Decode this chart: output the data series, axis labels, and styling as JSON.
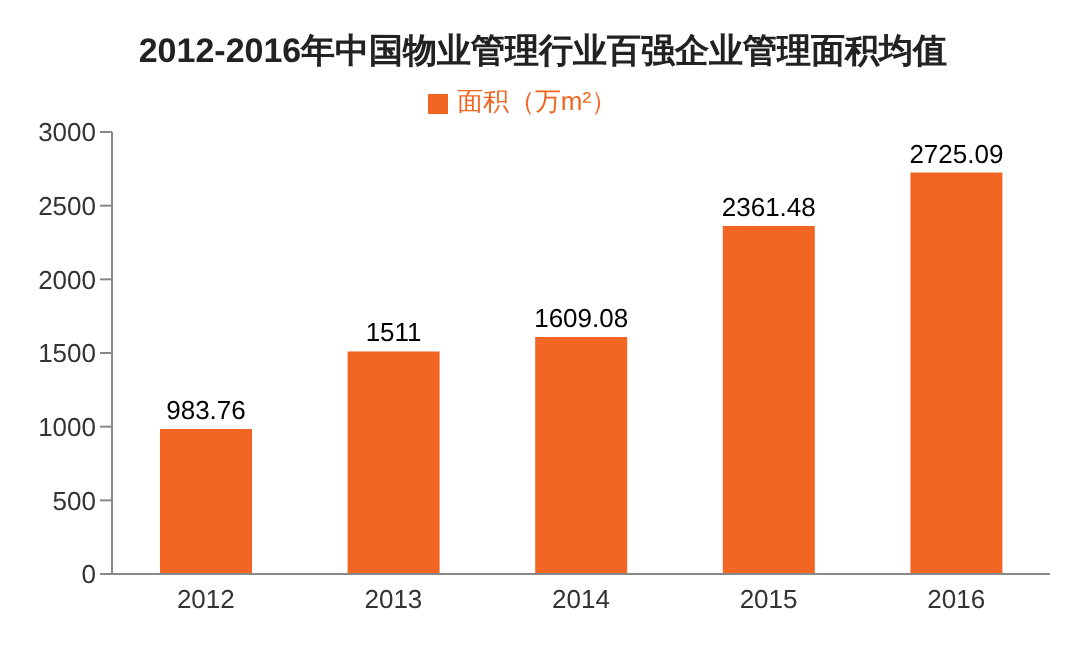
{
  "chart_data": {
    "type": "bar",
    "title": "2012-2016年中国物业管理行业百强企业管理面积均值",
    "categories": [
      "2012",
      "2013",
      "2014",
      "2015",
      "2016"
    ],
    "series": [
      {
        "name": "面积（万m²）",
        "color": "#f26522",
        "values": [
          983.76,
          1511,
          1609.08,
          2361.48,
          2725.09
        ]
      }
    ],
    "ylim": [
      0,
      3000
    ],
    "yticks": [
      0,
      500,
      1000,
      1500,
      2000,
      2500,
      3000
    ],
    "grid": false,
    "legend": "top",
    "data_labels": true
  }
}
